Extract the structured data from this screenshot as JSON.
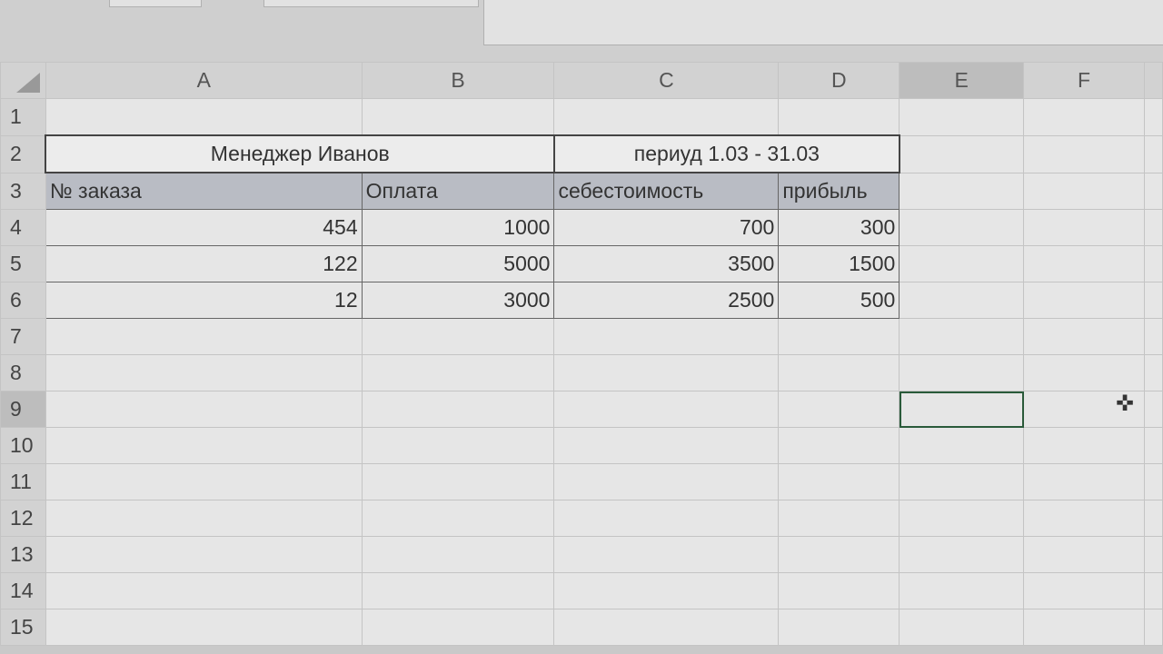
{
  "columns": [
    "A",
    "B",
    "C",
    "D",
    "E",
    "F",
    ""
  ],
  "rows": [
    {
      "n": "1",
      "cells": [
        "",
        "",
        "",
        "",
        "",
        "",
        ""
      ]
    },
    {
      "n": "2",
      "cells": [
        "Менеджер   Иванов",
        "",
        "периуд  1.03 - 31.03",
        "",
        "",
        "",
        ""
      ]
    },
    {
      "n": "3",
      "cells": [
        "№ заказа",
        "Оплата",
        "себестоимость",
        "прибыль",
        "",
        "",
        ""
      ]
    },
    {
      "n": "4",
      "cells": [
        "454",
        "1000",
        "700",
        "300",
        "",
        "",
        ""
      ]
    },
    {
      "n": "5",
      "cells": [
        "122",
        "5000",
        "3500",
        "1500",
        "",
        "",
        ""
      ]
    },
    {
      "n": "6",
      "cells": [
        "12",
        "3000",
        "2500",
        "500",
        "",
        "",
        ""
      ]
    },
    {
      "n": "7",
      "cells": [
        "",
        "",
        "",
        "",
        "",
        "",
        ""
      ]
    },
    {
      "n": "8",
      "cells": [
        "",
        "",
        "",
        "",
        "",
        "",
        ""
      ]
    },
    {
      "n": "9",
      "cells": [
        "",
        "",
        "",
        "",
        "",
        "",
        ""
      ]
    },
    {
      "n": "10",
      "cells": [
        "",
        "",
        "",
        "",
        "",
        "",
        ""
      ]
    },
    {
      "n": "11",
      "cells": [
        "",
        "",
        "",
        "",
        "",
        "",
        ""
      ]
    },
    {
      "n": "12",
      "cells": [
        "",
        "",
        "",
        "",
        "",
        "",
        ""
      ]
    },
    {
      "n": "13",
      "cells": [
        "",
        "",
        "",
        "",
        "",
        "",
        ""
      ]
    },
    {
      "n": "14",
      "cells": [
        "",
        "",
        "",
        "",
        "",
        "",
        ""
      ]
    },
    {
      "n": "15",
      "cells": [
        "",
        "",
        "",
        "",
        "",
        "",
        ""
      ]
    }
  ],
  "selected_cell": "E9",
  "colors": {
    "header_fill": "#b9bcc4",
    "selection": "#2a5a3a"
  }
}
